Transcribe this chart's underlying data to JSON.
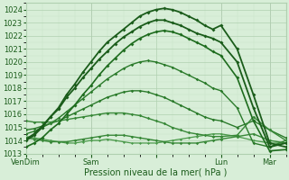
{
  "xlabel": "Pression niveau de la mer( hPa )",
  "ylim": [
    1013,
    1024.5
  ],
  "xlim": [
    0,
    96
  ],
  "yticks": [
    1013,
    1014,
    1015,
    1016,
    1017,
    1018,
    1019,
    1020,
    1021,
    1022,
    1023,
    1024
  ],
  "xtick_positions": [
    0,
    24,
    48,
    72,
    90
  ],
  "xtick_labels": [
    "VenDim",
    "Sam",
    "",
    "Lun",
    "Mar"
  ],
  "background_color": "#d8eed8",
  "grid_color_major": "#b0d0b0",
  "grid_color_minor": "#c8e4c8",
  "series": [
    {
      "x": [
        0,
        3,
        6,
        9,
        12,
        15,
        18,
        21,
        24,
        27,
        30,
        33,
        36,
        39,
        42,
        45,
        48,
        51,
        54,
        57,
        60,
        63,
        66,
        69,
        72,
        78,
        84,
        90,
        96
      ],
      "y": [
        1014.0,
        1014.4,
        1015.0,
        1015.8,
        1016.5,
        1017.5,
        1018.3,
        1019.2,
        1020.0,
        1020.8,
        1021.5,
        1022.0,
        1022.5,
        1023.0,
        1023.5,
        1023.8,
        1024.0,
        1024.1,
        1024.0,
        1023.8,
        1023.5,
        1023.2,
        1022.8,
        1022.5,
        1022.8,
        1021.0,
        1017.5,
        1013.8,
        1013.5
      ],
      "color": "#1a5c1a",
      "lw": 1.3,
      "marker": "D",
      "ms": 2.0,
      "zorder": 5
    },
    {
      "x": [
        0,
        3,
        6,
        9,
        12,
        15,
        18,
        21,
        24,
        27,
        30,
        33,
        36,
        39,
        42,
        45,
        48,
        51,
        54,
        57,
        60,
        63,
        66,
        69,
        72,
        78,
        84,
        90,
        96
      ],
      "y": [
        1014.1,
        1014.5,
        1015.1,
        1015.8,
        1016.4,
        1017.3,
        1018.0,
        1018.8,
        1019.5,
        1020.2,
        1020.8,
        1021.4,
        1021.9,
        1022.3,
        1022.7,
        1023.0,
        1023.2,
        1023.2,
        1023.0,
        1022.8,
        1022.5,
        1022.2,
        1022.0,
        1021.8,
        1021.5,
        1020.0,
        1016.5,
        1013.5,
        1013.8
      ],
      "color": "#1a5c1a",
      "lw": 1.3,
      "marker": "D",
      "ms": 2.0,
      "zorder": 5
    },
    {
      "x": [
        0,
        3,
        6,
        9,
        12,
        15,
        18,
        21,
        24,
        27,
        30,
        33,
        36,
        39,
        42,
        45,
        48,
        51,
        54,
        57,
        60,
        63,
        66,
        69,
        72,
        78,
        84,
        90,
        96
      ],
      "y": [
        1013.5,
        1013.8,
        1014.2,
        1014.8,
        1015.3,
        1016.0,
        1016.7,
        1017.5,
        1018.2,
        1019.0,
        1019.7,
        1020.3,
        1020.9,
        1021.4,
        1021.8,
        1022.1,
        1022.3,
        1022.4,
        1022.3,
        1022.1,
        1021.8,
        1021.5,
        1021.2,
        1020.8,
        1020.5,
        1018.8,
        1015.5,
        1013.2,
        1013.3
      ],
      "color": "#1e6c1e",
      "lw": 1.2,
      "marker": "D",
      "ms": 2.0,
      "zorder": 4
    },
    {
      "x": [
        0,
        3,
        6,
        9,
        12,
        15,
        18,
        21,
        24,
        27,
        30,
        33,
        36,
        39,
        42,
        45,
        48,
        51,
        54,
        57,
        60,
        63,
        66,
        69,
        72,
        78,
        84,
        90,
        96
      ],
      "y": [
        1014.5,
        1014.7,
        1015.0,
        1015.3,
        1015.7,
        1016.2,
        1016.7,
        1017.2,
        1017.7,
        1018.2,
        1018.7,
        1019.1,
        1019.5,
        1019.8,
        1020.0,
        1020.1,
        1020.0,
        1019.8,
        1019.6,
        1019.3,
        1019.0,
        1018.7,
        1018.4,
        1018.0,
        1017.8,
        1016.5,
        1013.8,
        1013.5,
        1014.0
      ],
      "color": "#2a7a2a",
      "lw": 1.0,
      "marker": "D",
      "ms": 1.8,
      "zorder": 3
    },
    {
      "x": [
        0,
        3,
        6,
        9,
        12,
        15,
        18,
        21,
        24,
        27,
        30,
        33,
        36,
        39,
        42,
        45,
        48,
        51,
        54,
        57,
        60,
        63,
        66,
        69,
        72,
        78,
        84,
        90,
        96
      ],
      "y": [
        1014.8,
        1014.9,
        1015.1,
        1015.3,
        1015.5,
        1015.8,
        1016.1,
        1016.4,
        1016.7,
        1017.0,
        1017.3,
        1017.5,
        1017.7,
        1017.8,
        1017.8,
        1017.7,
        1017.5,
        1017.3,
        1017.0,
        1016.7,
        1016.4,
        1016.1,
        1015.8,
        1015.6,
        1015.5,
        1015.0,
        1015.5,
        1014.8,
        1014.2
      ],
      "color": "#2a7a2a",
      "lw": 1.0,
      "marker": "D",
      "ms": 1.8,
      "zorder": 3
    },
    {
      "x": [
        0,
        3,
        6,
        9,
        12,
        15,
        18,
        21,
        24,
        27,
        30,
        33,
        36,
        39,
        42,
        45,
        48,
        51,
        54,
        57,
        60,
        63,
        66,
        69,
        72,
        78,
        84,
        90,
        96
      ],
      "y": [
        1015.5,
        1015.4,
        1015.4,
        1015.4,
        1015.5,
        1015.6,
        1015.7,
        1015.8,
        1015.9,
        1016.0,
        1016.1,
        1016.1,
        1016.1,
        1016.0,
        1015.9,
        1015.7,
        1015.5,
        1015.3,
        1015.0,
        1014.8,
        1014.6,
        1014.5,
        1014.4,
        1014.3,
        1014.3,
        1014.4,
        1015.8,
        1014.8,
        1014.0
      ],
      "color": "#388838",
      "lw": 1.0,
      "marker": "D",
      "ms": 1.8,
      "zorder": 3
    },
    {
      "x": [
        0,
        3,
        6,
        9,
        12,
        15,
        18,
        21,
        24,
        27,
        30,
        33,
        36,
        39,
        42,
        45,
        48,
        51,
        54,
        57,
        60,
        63,
        66,
        69,
        72,
        78,
        84,
        90,
        96
      ],
      "y": [
        1014.2,
        1014.1,
        1014.0,
        1013.9,
        1013.9,
        1013.9,
        1014.0,
        1014.1,
        1014.2,
        1014.3,
        1014.4,
        1014.4,
        1014.4,
        1014.3,
        1014.2,
        1014.1,
        1014.0,
        1013.9,
        1013.8,
        1013.8,
        1013.8,
        1013.8,
        1013.9,
        1014.0,
        1014.1,
        1014.3,
        1014.5,
        1014.0,
        1013.8
      ],
      "color": "#388838",
      "lw": 1.0,
      "marker": "D",
      "ms": 1.8,
      "zorder": 3
    },
    {
      "x": [
        0,
        3,
        6,
        9,
        12,
        15,
        18,
        21,
        24,
        27,
        30,
        33,
        36,
        39,
        42,
        45,
        48,
        51,
        54,
        57,
        60,
        63,
        66,
        69,
        72,
        78,
        84,
        90,
        96
      ],
      "y": [
        1014.3,
        1014.2,
        1014.1,
        1014.0,
        1013.9,
        1013.8,
        1013.8,
        1013.9,
        1014.0,
        1014.0,
        1014.1,
        1014.0,
        1013.9,
        1013.8,
        1013.8,
        1013.8,
        1013.8,
        1013.9,
        1014.0,
        1014.1,
        1014.2,
        1014.3,
        1014.4,
        1014.5,
        1014.5,
        1014.3,
        1014.0,
        1013.8,
        1013.8
      ],
      "color": "#4a9a4a",
      "lw": 0.9,
      "marker": "D",
      "ms": 1.5,
      "zorder": 2
    }
  ],
  "vline_positions": [
    0,
    24,
    72,
    90
  ],
  "vline_color": "#999999"
}
